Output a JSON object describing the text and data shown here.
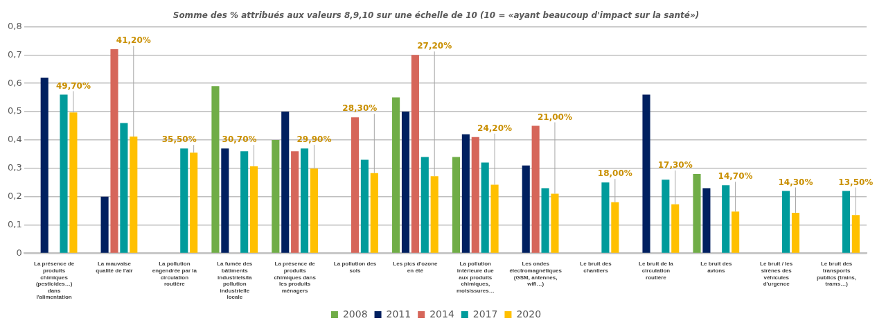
{
  "chart_data": {
    "type": "bar",
    "title": "Somme des % attribués aux valeurs 8,9,10 sur une échelle de 10 (10 = «ayant beaucoup d'impact sur la santé»)",
    "categories": [
      "La présence de produits chimiques (pesticides…) dans l'alimentation",
      "La mauvaise qualité de l'air",
      "La pollution engendrée par la circulation routière",
      "La fumée des bâtiments industriels/la pollution industrielle locale",
      "La présence de produits chimiques dans les produits ménagers",
      "La pollution des sols",
      "Les pics d'ozone en été",
      "La pollution intérieure due aux produits chimiques, moisissures…",
      "Les ondes électromagnétiques (GSM, antennes, wifi…)",
      "Le bruit des chantiers",
      "Le bruit de la circulation routière",
      "Le bruit des avions",
      "Le bruit / les sirènes des véhicules d'urgence",
      "Le bruit des transports publics (trains, trams…)"
    ],
    "series": [
      {
        "name": "2008",
        "color": "#70ad47",
        "values": [
          null,
          null,
          null,
          0.59,
          0.4,
          null,
          0.55,
          0.34,
          null,
          null,
          null,
          0.28,
          null,
          null
        ]
      },
      {
        "name": "2011",
        "color": "#002060",
        "values": [
          0.62,
          0.2,
          null,
          0.37,
          0.5,
          null,
          0.5,
          0.42,
          0.31,
          null,
          0.56,
          0.23,
          null,
          null
        ]
      },
      {
        "name": "2014",
        "color": "#d6665a",
        "values": [
          null,
          0.72,
          null,
          null,
          0.36,
          0.48,
          0.7,
          0.41,
          0.45,
          null,
          null,
          null,
          null,
          null
        ]
      },
      {
        "name": "2017",
        "color": "#009b9b",
        "values": [
          0.56,
          0.46,
          0.37,
          0.36,
          0.37,
          0.33,
          0.34,
          0.32,
          0.23,
          0.25,
          0.26,
          0.24,
          0.22,
          0.22
        ]
      },
      {
        "name": "2020",
        "color": "#ffc000",
        "values": [
          0.497,
          0.412,
          0.355,
          0.307,
          0.299,
          0.283,
          0.272,
          0.242,
          0.21,
          0.18,
          0.173,
          0.147,
          0.143,
          0.135
        ],
        "value_labels": [
          "49,70%",
          "41,20%",
          "35,50%",
          "30,70%",
          "29,90%",
          "28,30%",
          "27,20%",
          "24,20%",
          "21,00%",
          "18,00%",
          "17,30%",
          "14,70%",
          "14,30%",
          "13,50%"
        ]
      }
    ],
    "ylim": [
      0,
      0.8
    ],
    "yticks": [
      {
        "value": 0,
        "label": "0"
      },
      {
        "value": 0.1,
        "label": "0,1"
      },
      {
        "value": 0.2,
        "label": "0,2"
      },
      {
        "value": 0.3,
        "label": "0,3"
      },
      {
        "value": 0.4,
        "label": "0,4"
      },
      {
        "value": 0.5,
        "label": "0,5"
      },
      {
        "value": 0.6,
        "label": "0,6"
      },
      {
        "value": 0.7,
        "label": "0,7"
      },
      {
        "value": 0.8,
        "label": "0,8"
      }
    ],
    "grid": "y",
    "legend": "bottom"
  }
}
